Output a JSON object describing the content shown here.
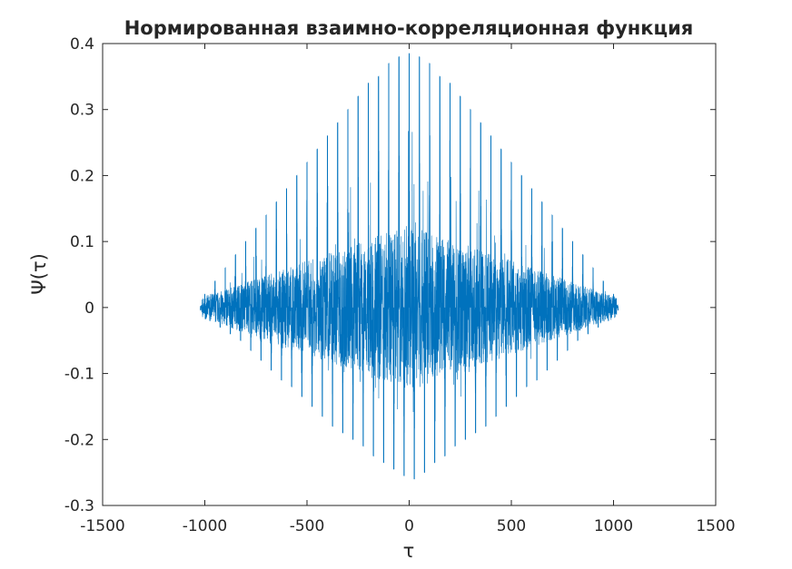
{
  "chart_data": {
    "type": "line",
    "title": "Нормированная взаимно-корреляционная функция",
    "xlabel": "τ",
    "ylabel": "Ψ(τ)",
    "xlim": [
      -1500,
      1500
    ],
    "ylim": [
      -0.3,
      0.4
    ],
    "xticks": [
      -1500,
      -1000,
      -500,
      0,
      500,
      1000,
      1500
    ],
    "xtick_labels": [
      "-1500",
      "-1000",
      "-500",
      "0",
      "500",
      "1000",
      "1500"
    ],
    "yticks": [
      -0.3,
      -0.2,
      -0.1,
      0,
      0.1,
      0.2,
      0.3,
      0.4
    ],
    "ytick_labels": [
      "-0.3",
      "-0.2",
      "-0.1",
      "0",
      "0.1",
      "0.2",
      "0.3",
      "0.4"
    ],
    "grid": false,
    "series": [
      {
        "color": "#0072bd",
        "x_range": [
          -1023,
          1023
        ],
        "peak_spacing": 50,
        "max": 0.385,
        "max_at": 0,
        "min": -0.26,
        "min_at": 25,
        "peaks": [
          {
            "x": -1000,
            "y": 0.02
          },
          {
            "x": -950,
            "y": 0.04
          },
          {
            "x": -900,
            "y": 0.06
          },
          {
            "x": -850,
            "y": 0.08
          },
          {
            "x": -800,
            "y": 0.1
          },
          {
            "x": -750,
            "y": 0.12
          },
          {
            "x": -700,
            "y": 0.14
          },
          {
            "x": -650,
            "y": 0.16
          },
          {
            "x": -600,
            "y": 0.18
          },
          {
            "x": -550,
            "y": 0.2
          },
          {
            "x": -500,
            "y": 0.22
          },
          {
            "x": -450,
            "y": 0.24
          },
          {
            "x": -400,
            "y": 0.26
          },
          {
            "x": -350,
            "y": 0.28
          },
          {
            "x": -300,
            "y": 0.3
          },
          {
            "x": -250,
            "y": 0.32
          },
          {
            "x": -200,
            "y": 0.34
          },
          {
            "x": -150,
            "y": 0.35
          },
          {
            "x": -100,
            "y": 0.37
          },
          {
            "x": -50,
            "y": 0.38
          },
          {
            "x": 0,
            "y": 0.385
          },
          {
            "x": 50,
            "y": 0.38
          },
          {
            "x": 100,
            "y": 0.37
          },
          {
            "x": 150,
            "y": 0.35
          },
          {
            "x": 200,
            "y": 0.34
          },
          {
            "x": 250,
            "y": 0.32
          },
          {
            "x": 300,
            "y": 0.3
          },
          {
            "x": 350,
            "y": 0.28
          },
          {
            "x": 400,
            "y": 0.26
          },
          {
            "x": 450,
            "y": 0.24
          },
          {
            "x": 500,
            "y": 0.22
          },
          {
            "x": 550,
            "y": 0.2
          },
          {
            "x": 600,
            "y": 0.18
          },
          {
            "x": 650,
            "y": 0.16
          },
          {
            "x": 700,
            "y": 0.14
          },
          {
            "x": 750,
            "y": 0.12
          },
          {
            "x": 800,
            "y": 0.1
          },
          {
            "x": 850,
            "y": 0.08
          },
          {
            "x": 900,
            "y": 0.06
          },
          {
            "x": 950,
            "y": 0.04
          },
          {
            "x": 1000,
            "y": 0.02
          }
        ],
        "troughs": [
          {
            "x": -975,
            "y": -0.02
          },
          {
            "x": -925,
            "y": -0.03
          },
          {
            "x": -875,
            "y": -0.04
          },
          {
            "x": -825,
            "y": -0.05
          },
          {
            "x": -775,
            "y": -0.065
          },
          {
            "x": -725,
            "y": -0.08
          },
          {
            "x": -675,
            "y": -0.095
          },
          {
            "x": -625,
            "y": -0.11
          },
          {
            "x": -575,
            "y": -0.12
          },
          {
            "x": -525,
            "y": -0.135
          },
          {
            "x": -475,
            "y": -0.15
          },
          {
            "x": -425,
            "y": -0.165
          },
          {
            "x": -375,
            "y": -0.18
          },
          {
            "x": -325,
            "y": -0.19
          },
          {
            "x": -275,
            "y": -0.2
          },
          {
            "x": -225,
            "y": -0.21
          },
          {
            "x": -175,
            "y": -0.225
          },
          {
            "x": -125,
            "y": -0.235
          },
          {
            "x": -75,
            "y": -0.245
          },
          {
            "x": -25,
            "y": -0.255
          },
          {
            "x": 25,
            "y": -0.26
          },
          {
            "x": 75,
            "y": -0.25
          },
          {
            "x": 125,
            "y": -0.235
          },
          {
            "x": 175,
            "y": -0.225
          },
          {
            "x": 225,
            "y": -0.21
          },
          {
            "x": 275,
            "y": -0.2
          },
          {
            "x": 325,
            "y": -0.19
          },
          {
            "x": 375,
            "y": -0.18
          },
          {
            "x": 425,
            "y": -0.165
          },
          {
            "x": 475,
            "y": -0.15
          },
          {
            "x": 525,
            "y": -0.135
          },
          {
            "x": 575,
            "y": -0.12
          },
          {
            "x": 625,
            "y": -0.11
          },
          {
            "x": 675,
            "y": -0.095
          },
          {
            "x": 725,
            "y": -0.08
          },
          {
            "x": 775,
            "y": -0.065
          },
          {
            "x": 825,
            "y": -0.05
          },
          {
            "x": 875,
            "y": -0.04
          },
          {
            "x": 925,
            "y": -0.03
          },
          {
            "x": 975,
            "y": -0.02
          }
        ]
      }
    ]
  }
}
